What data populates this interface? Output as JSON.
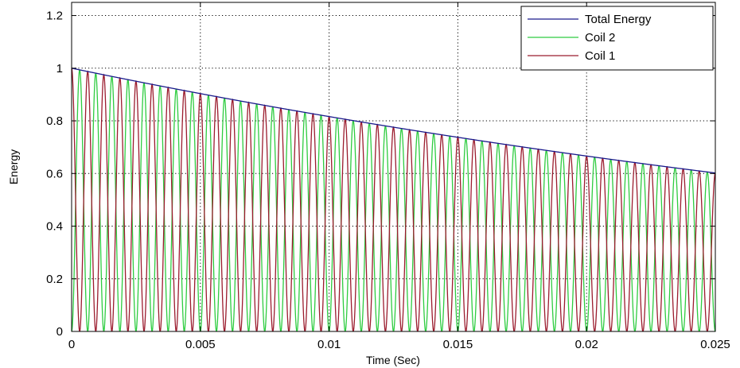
{
  "chart_data": {
    "type": "line",
    "title": "",
    "xlabel": "Time (Sec)",
    "ylabel": "Energy",
    "xlim": [
      0,
      0.025
    ],
    "ylim": [
      0,
      1.25
    ],
    "xticks": [
      0,
      0.005,
      0.01,
      0.015,
      0.02,
      0.025
    ],
    "xtick_labels": [
      "0",
      "0.005",
      "0.01",
      "0.015",
      "0.02",
      "0.025"
    ],
    "yticks": [
      0,
      0.2,
      0.4,
      0.6,
      0.8,
      1,
      1.2
    ],
    "ytick_labels": [
      "0",
      "0.2",
      "0.4",
      "0.6",
      "0.8",
      "1",
      "1.2"
    ],
    "grid": true,
    "grid_style": "dotted",
    "legend_position": "top-right",
    "series": [
      {
        "name": "Total Energy",
        "color": "#1a1a8c",
        "x": [
          0,
          0.005,
          0.01,
          0.015,
          0.02,
          0.025
        ],
        "y": [
          1,
          0.905,
          0.815,
          0.737,
          0.666,
          0.602
        ]
      },
      {
        "name": "Coil 2",
        "color": "#2ecc40",
        "x": [
          0,
          0.0006,
          0.005,
          0.0101,
          0.0151,
          0.0201,
          0.025
        ],
        "y": [
          0,
          0.99,
          0.905,
          0.815,
          0.737,
          0.666,
          0.07
        ],
        "cycles": 40
      },
      {
        "name": "Coil 1",
        "color": "#9b1c2e",
        "x": [
          0,
          0.0006,
          0.005,
          0.0101,
          0.0151,
          0.0201,
          0.025
        ],
        "y": [
          1,
          0,
          0,
          0,
          0,
          0,
          0.53
        ],
        "cycles": 40
      }
    ]
  }
}
